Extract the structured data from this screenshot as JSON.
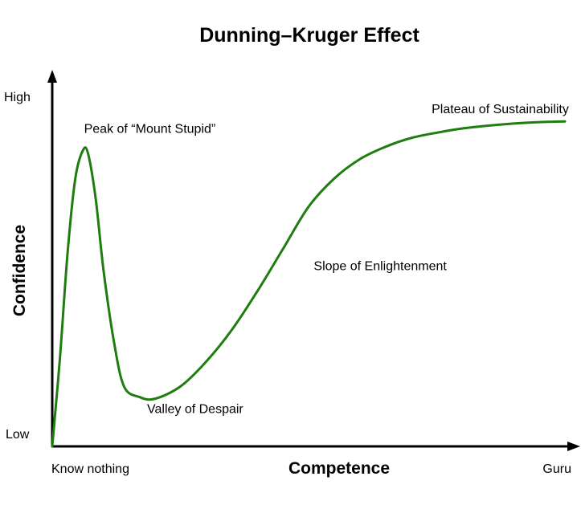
{
  "chart_data": {
    "type": "line",
    "title": "Dunning–Kruger Effect",
    "xlabel": "Competence",
    "ylabel": "Confidence",
    "x_tick_labels": [
      "Know nothing",
      "Guru"
    ],
    "y_tick_labels": [
      "Low",
      "High"
    ],
    "xlim": [
      0,
      100
    ],
    "ylim": [
      0,
      100
    ],
    "grid": false,
    "colors": {
      "curve": "#1e7d0e",
      "axis": "#000000"
    },
    "series": [
      {
        "x": [
          0,
          1.5,
          3.0,
          4.5,
          6.0,
          7.0,
          8.5,
          10,
          12,
          14,
          17,
          20,
          25,
          30,
          35,
          40,
          45,
          50,
          55,
          60,
          65,
          70,
          75,
          80,
          85,
          90,
          95,
          100
        ],
        "y": [
          0,
          25,
          55,
          76,
          84,
          83,
          70,
          50,
          30,
          17,
          14,
          13.5,
          17,
          24,
          33,
          44,
          56,
          68,
          76,
          81.5,
          85,
          87.5,
          89,
          90.2,
          91,
          91.6,
          92,
          92.2
        ]
      }
    ],
    "annotations": [
      {
        "text": "Peak of “Mount Stupid”",
        "x": 6.2,
        "y": 89
      },
      {
        "text": "Valley of Despair",
        "x": 18.5,
        "y": 9.5
      },
      {
        "text": "Slope of Enlightenment",
        "x": 51,
        "y": 50
      },
      {
        "text": "Plateau of Sustainability",
        "x": 74,
        "y": 94.5
      }
    ]
  }
}
